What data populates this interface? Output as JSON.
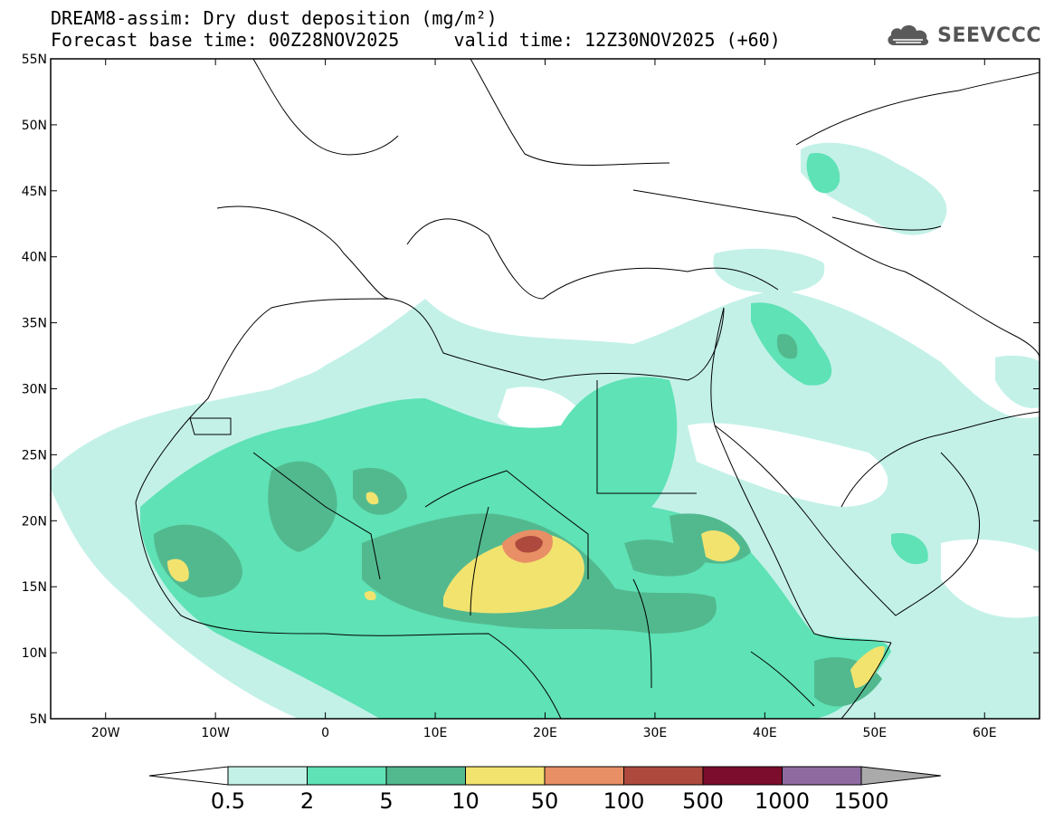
{
  "header": {
    "title": "DREAM8-assim: Dry dust deposition (mg/m²)",
    "base_time": "Forecast base time: 00Z28NOV2025",
    "valid_time": "valid time: 12Z30NOV2025 (+60)"
  },
  "logo": {
    "text": "SEEVCCC",
    "icon": "cloud-icon"
  },
  "map": {
    "lon_range": [
      -25,
      65
    ],
    "lat_range": [
      5,
      55
    ],
    "lon_ticks": [
      {
        "v": -20,
        "label": "20W"
      },
      {
        "v": -10,
        "label": "10W"
      },
      {
        "v": 0,
        "label": "0"
      },
      {
        "v": 10,
        "label": "10E"
      },
      {
        "v": 20,
        "label": "20E"
      },
      {
        "v": 30,
        "label": "30E"
      },
      {
        "v": 40,
        "label": "40E"
      },
      {
        "v": 50,
        "label": "50E"
      },
      {
        "v": 60,
        "label": "60E"
      }
    ],
    "lat_ticks": [
      {
        "v": 55,
        "label": "55N"
      },
      {
        "v": 50,
        "label": "50N"
      },
      {
        "v": 45,
        "label": "45N"
      },
      {
        "v": 40,
        "label": "40N"
      },
      {
        "v": 35,
        "label": "35N"
      },
      {
        "v": 30,
        "label": "30N"
      },
      {
        "v": 25,
        "label": "25N"
      },
      {
        "v": 20,
        "label": "20N"
      },
      {
        "v": 15,
        "label": "15N"
      },
      {
        "v": 10,
        "label": "10N"
      },
      {
        "v": 5,
        "label": "5N"
      }
    ]
  },
  "colorbar": {
    "colors": [
      "#c3f1e8",
      "#5fe2b5",
      "#52b98f",
      "#f2e36f",
      "#e88f65",
      "#ad4a3d",
      "#7d0d2c",
      "#8e6aa0"
    ],
    "under_color": "#ffffff",
    "over_color": "#aaaaaa",
    "labels": [
      "0.5",
      "2",
      "5",
      "10",
      "50",
      "100",
      "500",
      "1000",
      "1500"
    ]
  }
}
